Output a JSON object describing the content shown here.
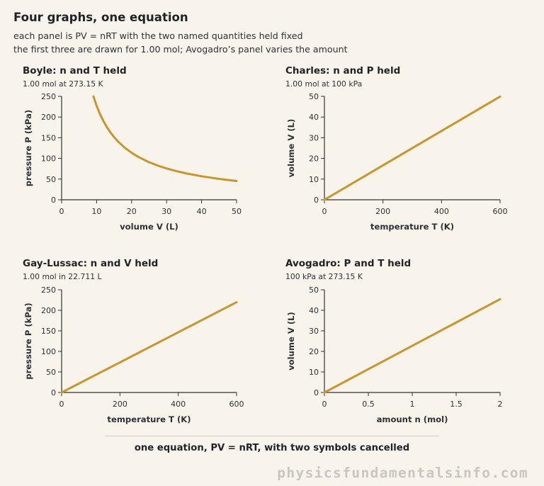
{
  "header": {
    "title": "Four graphs, one equation",
    "subtitle_1": "each panel is PV = nRT with the two named quantities held fixed",
    "subtitle_2": "the first three are drawn for 1.00 mol; Avogadro’s panel varies the amount"
  },
  "footer": {
    "caption": "one equation, PV = nRT, with two symbols cancelled",
    "watermark": "physicsfundamentalsinfo.com"
  },
  "colors": {
    "curve": "#c8962f",
    "background": "#f8f4ec",
    "divider": "#e2c9a6"
  },
  "chart_data": [
    {
      "type": "line",
      "title": "Boyle: n and T held",
      "subtitle": "1.00 mol at 273.15 K",
      "xlabel": "volume V (L)",
      "ylabel": "pressure P (kPa)",
      "xlim": [
        0,
        50
      ],
      "ylim": [
        0,
        250
      ],
      "xticks": [
        "0",
        "10",
        "20",
        "30",
        "40",
        "50"
      ],
      "yticks": [
        "0",
        "50",
        "100",
        "150",
        "200",
        "250"
      ],
      "function": "P = 2271.1 / V",
      "series": [
        {
          "x": [
            9.08,
            10,
            11,
            12,
            13,
            14,
            15,
            16,
            18,
            20,
            22,
            25,
            28,
            30,
            33,
            36,
            40,
            45,
            50
          ],
          "y": [
            250,
            227.1,
            206.5,
            189.3,
            174.7,
            162.2,
            151.4,
            141.9,
            126.2,
            113.6,
            103.2,
            90.8,
            81.1,
            75.7,
            68.8,
            63.1,
            56.8,
            50.5,
            45.4
          ]
        }
      ]
    },
    {
      "type": "line",
      "title": "Charles: n and P held",
      "subtitle": "1.00 mol at 100 kPa",
      "xlabel": "temperature T (K)",
      "ylabel": "volume V (L)",
      "xlim": [
        0,
        600
      ],
      "ylim": [
        0,
        50
      ],
      "xticks": [
        "0",
        "200",
        "400",
        "600"
      ],
      "yticks": [
        "0",
        "10",
        "20",
        "30",
        "40",
        "50"
      ],
      "series": [
        {
          "x": [
            0,
            600
          ],
          "y": [
            0,
            49.9
          ]
        }
      ]
    },
    {
      "type": "line",
      "title": "Gay-Lussac: n and V held",
      "subtitle": "1.00 mol in 22.711 L",
      "xlabel": "temperature T (K)",
      "ylabel": "pressure P (kPa)",
      "xlim": [
        0,
        600
      ],
      "ylim": [
        0,
        250
      ],
      "xticks": [
        "0",
        "200",
        "400",
        "600"
      ],
      "yticks": [
        "0",
        "50",
        "100",
        "150",
        "200",
        "250"
      ],
      "series": [
        {
          "x": [
            0,
            600
          ],
          "y": [
            0,
            219.7
          ]
        }
      ]
    },
    {
      "type": "line",
      "title": "Avogadro: P and T held",
      "subtitle": "100 kPa at 273.15 K",
      "xlabel": "amount n (mol)",
      "ylabel": "volume V (L)",
      "xlim": [
        0,
        2
      ],
      "ylim": [
        0,
        50
      ],
      "xticks": [
        "0",
        "0.5",
        "1",
        "1.5",
        "2"
      ],
      "yticks": [
        "0",
        "10",
        "20",
        "30",
        "40",
        "50"
      ],
      "series": [
        {
          "x": [
            0,
            2
          ],
          "y": [
            0,
            45.4
          ]
        }
      ]
    }
  ]
}
